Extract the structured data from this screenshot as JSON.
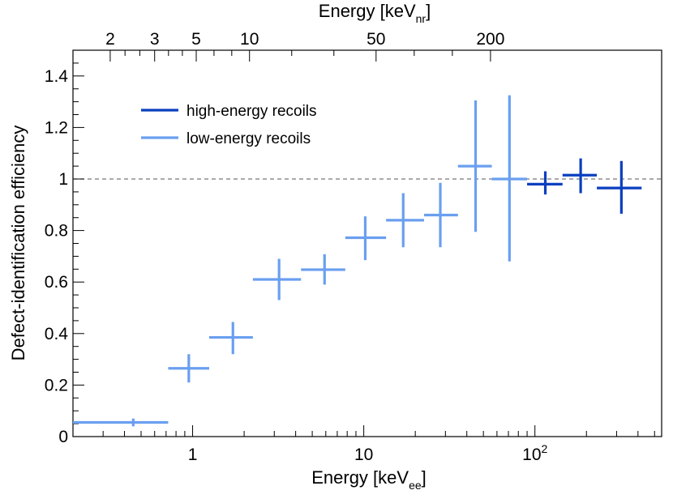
{
  "chart_data": {
    "type": "scatter",
    "title": "",
    "xlabel": {
      "main": "Energy [keV",
      "sub": "ee",
      "close": "]"
    },
    "x2label": {
      "main": "Energy [keV",
      "sub": "nr",
      "close": "]"
    },
    "ylabel": "Defect-identification efficiency",
    "xscale": "log",
    "xlim": [
      0.2,
      550
    ],
    "ylim": [
      0,
      1.5
    ],
    "x_ticks": [
      {
        "value": 1,
        "label": "1",
        "exp": ""
      },
      {
        "value": 10,
        "label": "10",
        "exp": ""
      },
      {
        "value": 100,
        "label": "10",
        "exp": "2"
      }
    ],
    "y_ticks": [
      {
        "value": 0,
        "label": "0"
      },
      {
        "value": 0.2,
        "label": "0.2"
      },
      {
        "value": 0.4,
        "label": "0.4"
      },
      {
        "value": 0.6,
        "label": "0.6"
      },
      {
        "value": 0.8,
        "label": "0.8"
      },
      {
        "value": 1.0,
        "label": "1"
      },
      {
        "value": 1.2,
        "label": "1.2"
      },
      {
        "value": 1.4,
        "label": "1.4"
      }
    ],
    "top_ticks": [
      {
        "label": "2",
        "at_x": 0.33
      },
      {
        "label": "3",
        "at_x": 0.6
      },
      {
        "label": "5",
        "at_x": 1.05
      },
      {
        "label": "10",
        "at_x": 2.15
      },
      {
        "label": "50",
        "at_x": 11.8
      },
      {
        "label": "200",
        "at_x": 55
      }
    ],
    "reference_line": {
      "y": 1.0,
      "style": "dashed",
      "color": "#777777"
    },
    "legend": {
      "position": "top-left"
    },
    "series": [
      {
        "name": "high-energy recoils",
        "color": "#0a3fbf",
        "points": [
          {
            "x": 115,
            "xlo": 90,
            "xhi": 145,
            "y": 0.98,
            "ylo": 0.94,
            "yhi": 1.03
          },
          {
            "x": 185,
            "xlo": 145,
            "xhi": 230,
            "y": 1.015,
            "ylo": 0.945,
            "yhi": 1.08
          },
          {
            "x": 320,
            "xlo": 230,
            "xhi": 420,
            "y": 0.965,
            "ylo": 0.865,
            "yhi": 1.07
          }
        ]
      },
      {
        "name": "low-energy recoils",
        "color": "#6a9ff0",
        "points": [
          {
            "x": 0.45,
            "xlo": 0.2,
            "xhi": 0.72,
            "y": 0.055,
            "ylo": 0.04,
            "yhi": 0.07
          },
          {
            "x": 0.95,
            "xlo": 0.72,
            "xhi": 1.25,
            "y": 0.265,
            "ylo": 0.21,
            "yhi": 0.32
          },
          {
            "x": 1.72,
            "xlo": 1.25,
            "xhi": 2.25,
            "y": 0.385,
            "ylo": 0.32,
            "yhi": 0.445
          },
          {
            "x": 3.2,
            "xlo": 2.25,
            "xhi": 4.3,
            "y": 0.61,
            "ylo": 0.53,
            "yhi": 0.69
          },
          {
            "x": 5.9,
            "xlo": 4.3,
            "xhi": 7.8,
            "y": 0.648,
            "ylo": 0.59,
            "yhi": 0.708
          },
          {
            "x": 10.2,
            "xlo": 7.8,
            "xhi": 13.5,
            "y": 0.772,
            "ylo": 0.685,
            "yhi": 0.855
          },
          {
            "x": 17.0,
            "xlo": 13.5,
            "xhi": 22.5,
            "y": 0.84,
            "ylo": 0.735,
            "yhi": 0.945
          },
          {
            "x": 28.0,
            "xlo": 22.5,
            "xhi": 35.5,
            "y": 0.86,
            "ylo": 0.735,
            "yhi": 0.985
          },
          {
            "x": 45.0,
            "xlo": 35.5,
            "xhi": 56.0,
            "y": 1.05,
            "ylo": 0.795,
            "yhi": 1.305
          },
          {
            "x": 71.0,
            "xlo": 56.0,
            "xhi": 90.0,
            "y": 1.0,
            "ylo": 0.68,
            "yhi": 1.325
          }
        ]
      }
    ]
  }
}
